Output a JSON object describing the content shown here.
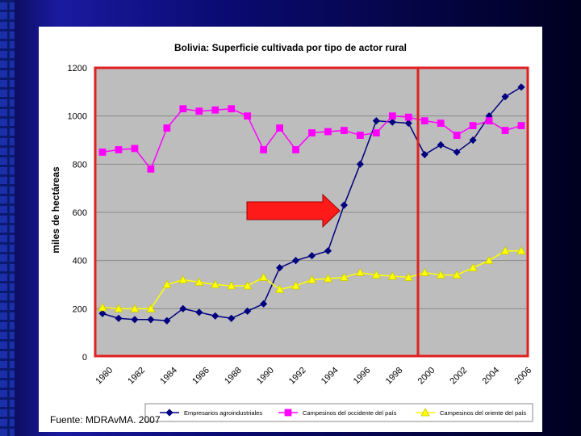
{
  "chart_data": {
    "type": "line",
    "title": "Bolivia: Superficie cultivada por tipo de actor rural",
    "ylabel": "miles de hectáreas",
    "xlabel": "",
    "ylim": [
      0,
      1200
    ],
    "yticks": [
      "0",
      "200",
      "400",
      "600",
      "800",
      "1000",
      "1200"
    ],
    "x": [
      1980,
      1981,
      1982,
      1983,
      1984,
      1985,
      1986,
      1987,
      1988,
      1989,
      1990,
      1991,
      1992,
      1993,
      1994,
      1995,
      1996,
      1997,
      1998,
      1999,
      2000,
      2001,
      2002,
      2003,
      2004,
      2005,
      2006
    ],
    "xticks": [
      "1980",
      "1982",
      "1984",
      "1986",
      "1988",
      "1990",
      "1992",
      "1994",
      "1996",
      "1998",
      "2000",
      "2002",
      "2004",
      "2006"
    ],
    "grid": true,
    "legend_position": "bottom",
    "series": [
      {
        "name": "Empresarios agroindustriales",
        "color": "#000080",
        "marker": "diamond",
        "values": [
          180,
          160,
          155,
          155,
          150,
          200,
          185,
          170,
          160,
          190,
          220,
          370,
          400,
          420,
          440,
          630,
          800,
          980,
          975,
          970,
          840,
          880,
          850,
          900,
          1000,
          1080,
          1120
        ]
      },
      {
        "name": "Campesinos del occidente del país",
        "color": "#ff00ff",
        "marker": "square",
        "values": [
          850,
          860,
          865,
          780,
          950,
          1030,
          1020,
          1025,
          1030,
          1000,
          860,
          950,
          860,
          930,
          935,
          940,
          920,
          930,
          1000,
          995,
          980,
          970,
          920,
          960,
          980,
          940,
          960
        ]
      },
      {
        "name": "Campesinos del oriente del país",
        "color": "#ffff00",
        "marker": "triangle",
        "values": [
          205,
          200,
          200,
          200,
          300,
          320,
          310,
          300,
          295,
          295,
          330,
          280,
          295,
          320,
          325,
          330,
          350,
          340,
          335,
          330,
          350,
          340,
          340,
          370,
          400,
          440,
          440
        ]
      }
    ]
  },
  "source": "Fuente: MDRAvMA. 2007"
}
